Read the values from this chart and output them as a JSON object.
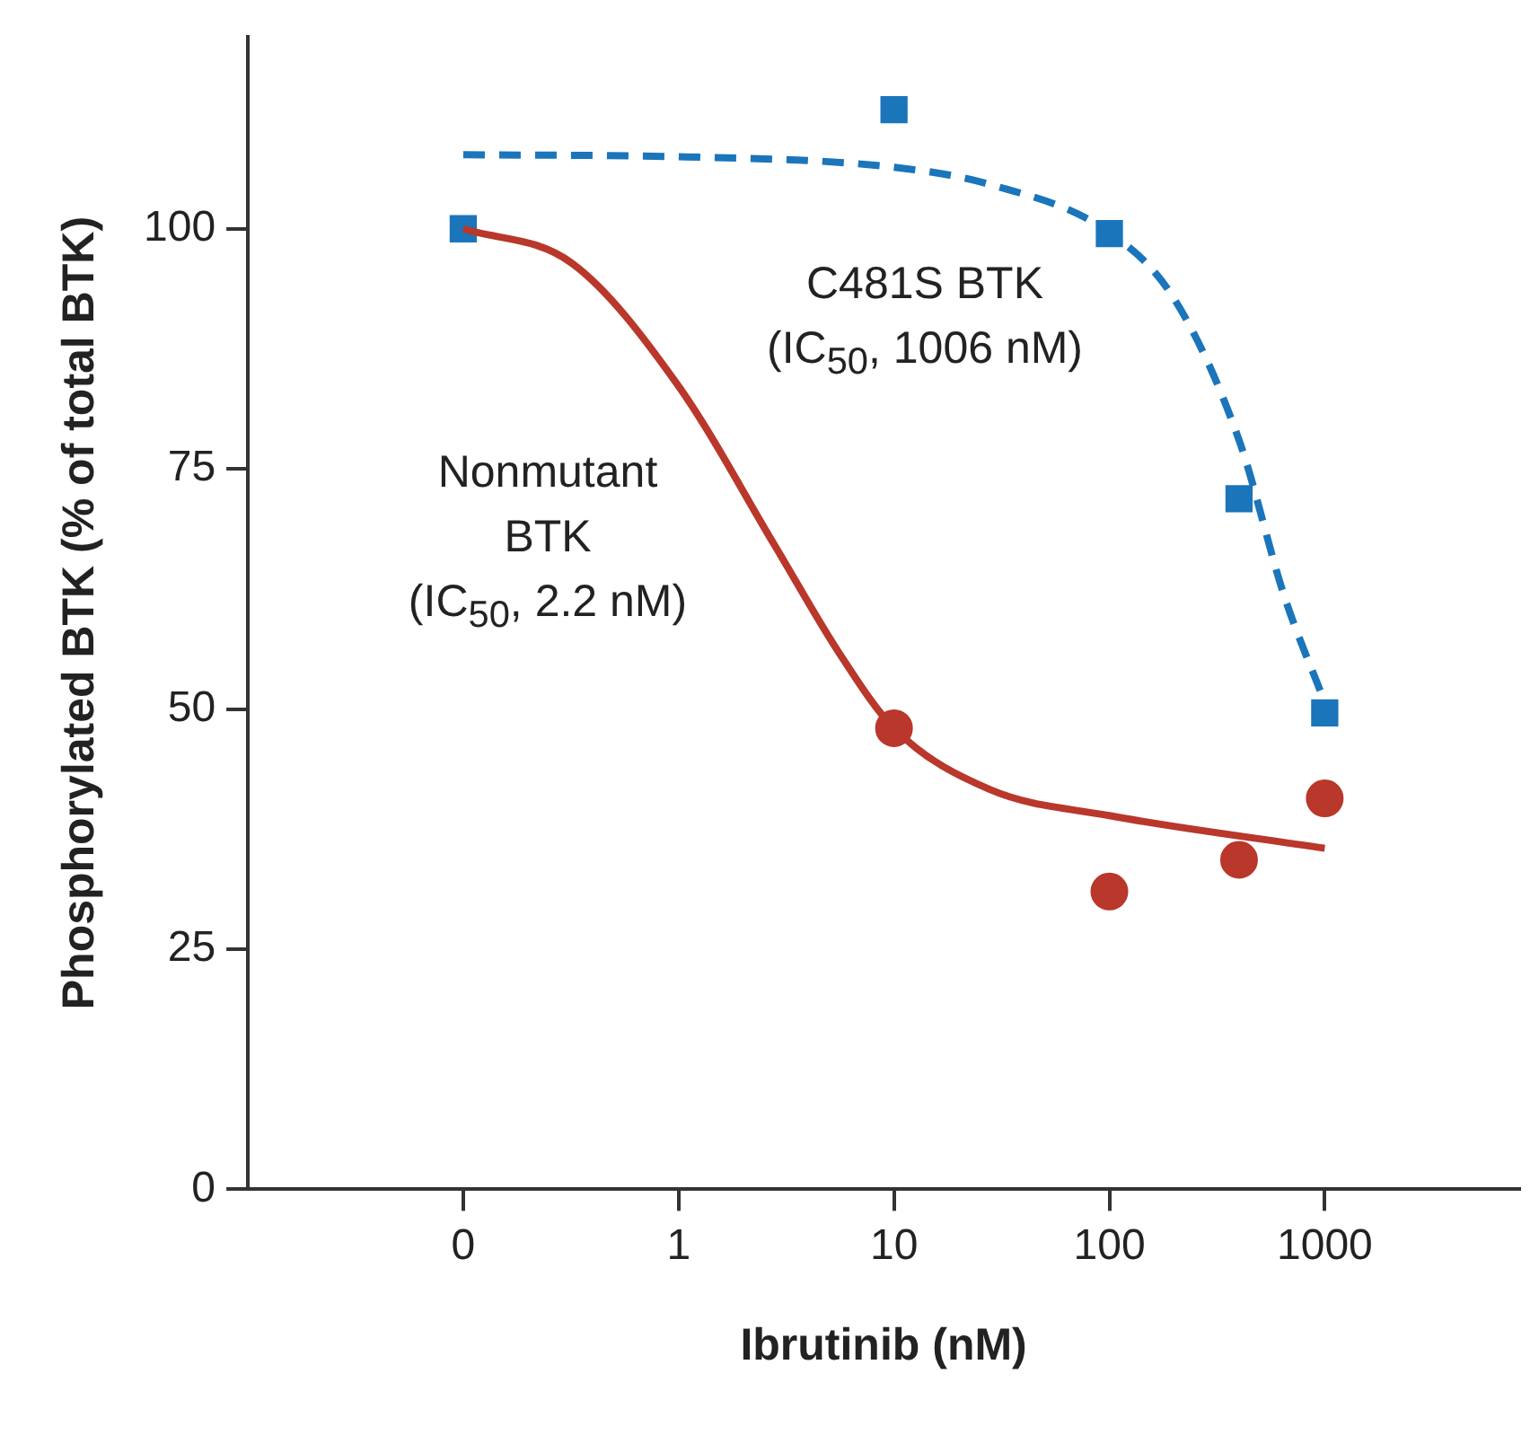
{
  "chart_data": {
    "type": "scatter",
    "xlabel": "Ibrutinib (nM)",
    "ylabel": "Phosphorylated BTK (% of total BTK)",
    "log": "x",
    "xlim": [
      0.01,
      8000
    ],
    "xticks": [
      {
        "value": 0.1,
        "label": "0"
      },
      1,
      10,
      100,
      1000
    ],
    "ylim": [
      0,
      120
    ],
    "yticks": [
      0,
      25,
      50,
      75,
      100
    ],
    "grid": false,
    "legend": false,
    "series": [
      {
        "type": "line",
        "color": "#1b75bb",
        "line_style": "dashed",
        "marker": "none",
        "x": [
          0.1,
          1,
          10,
          28,
          100,
          200,
          400,
          650,
          1000
        ],
        "values": [
          107.7,
          107.5,
          106.4,
          104.6,
          99.6,
          92.7,
          78,
          61.7,
          50.7
        ]
      },
      {
        "type": "line",
        "color": "#b9372b",
        "line_style": "solid",
        "marker": "none",
        "x": [
          0.1,
          0.32,
          1,
          2.8,
          5.5,
          10,
          28,
          100,
          1000
        ],
        "values": [
          100,
          96.4,
          83.6,
          67,
          56,
          48,
          41.6,
          38.9,
          35.5
        ]
      },
      {
        "color": "#1b75bb",
        "marker": "square",
        "x": [
          0.1,
          10,
          100,
          400,
          1000
        ],
        "values": [
          100,
          112.4,
          99.5,
          71.9,
          49.6
        ]
      },
      {
        "color": "#b9372b",
        "marker": "circle",
        "x": [
          10,
          100,
          400,
          1000
        ],
        "values": [
          48,
          31,
          34.3,
          40.7
        ]
      }
    ],
    "annotations": [
      "C481S BTK\n(IC$_{50}$, 1006 nM)",
      "Nonmutant\nBTK\n(IC$_{50}$, 2.2 nM)"
    ]
  }
}
